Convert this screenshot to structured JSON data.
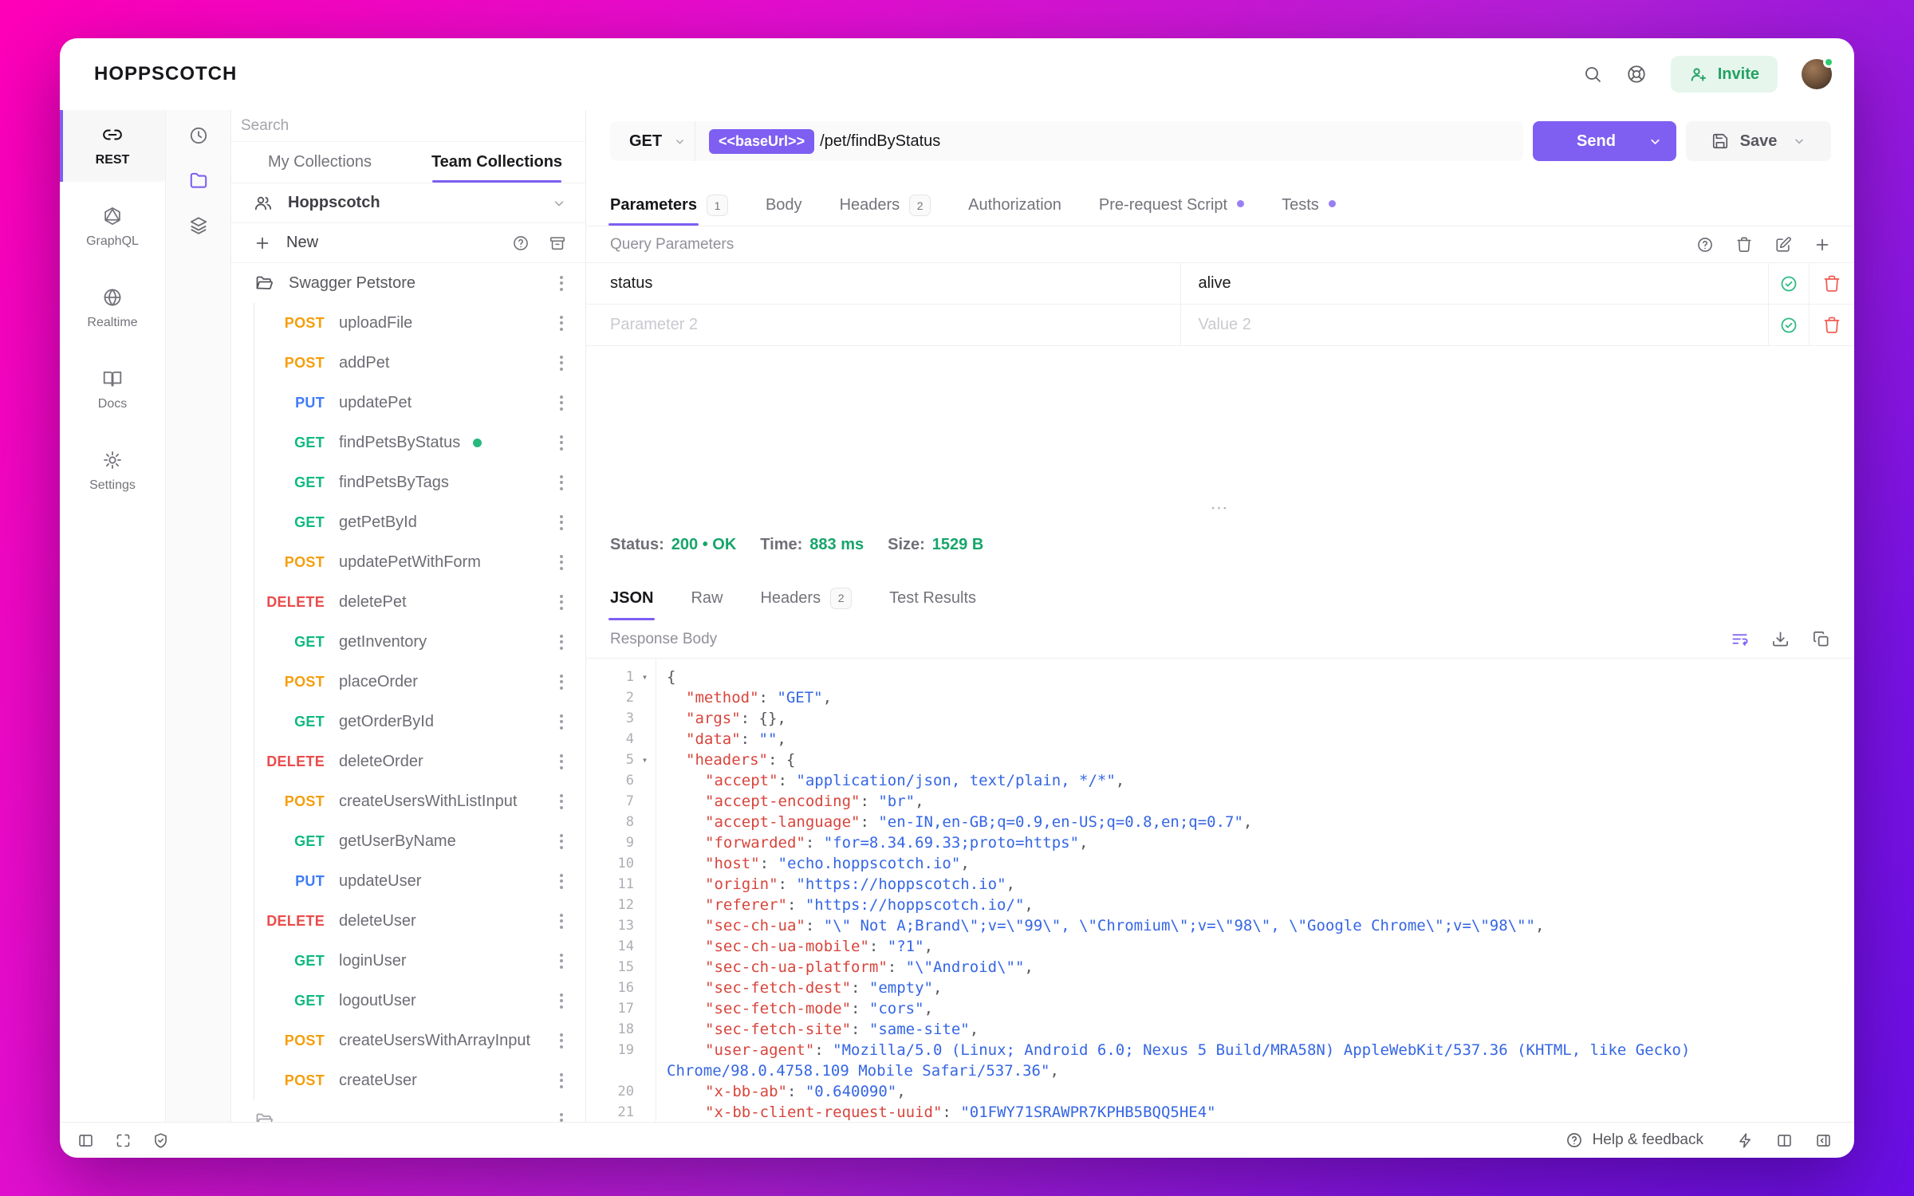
{
  "colors": {
    "accent": "#7e5ff2",
    "get": "#10b981",
    "post": "#f59e0b",
    "put": "#3e7bfa",
    "delete": "#ea4c4c",
    "green": "#17a56b",
    "red": "#ef5e55"
  },
  "header": {
    "logo": "HOPPSCOTCH",
    "invite_label": "Invite"
  },
  "nav": {
    "items": [
      {
        "label": "REST"
      },
      {
        "label": "GraphQL"
      },
      {
        "label": "Realtime"
      },
      {
        "label": "Docs"
      },
      {
        "label": "Settings"
      }
    ]
  },
  "collections": {
    "search_placeholder": "Search",
    "tab_my": "My Collections",
    "tab_team": "Team Collections",
    "team_name": "Hoppscotch",
    "new_label": "New",
    "folder_name": "Swagger Petstore",
    "requests": [
      {
        "method": "POST",
        "name": "uploadFile"
      },
      {
        "method": "POST",
        "name": "addPet"
      },
      {
        "method": "PUT",
        "name": "updatePet"
      },
      {
        "method": "GET",
        "name": "findPetsByStatus",
        "active": true
      },
      {
        "method": "GET",
        "name": "findPetsByTags"
      },
      {
        "method": "GET",
        "name": "getPetById"
      },
      {
        "method": "POST",
        "name": "updatePetWithForm"
      },
      {
        "method": "DELETE",
        "name": "deletePet"
      },
      {
        "method": "GET",
        "name": "getInventory"
      },
      {
        "method": "POST",
        "name": "placeOrder"
      },
      {
        "method": "GET",
        "name": "getOrderById"
      },
      {
        "method": "DELETE",
        "name": "deleteOrder"
      },
      {
        "method": "POST",
        "name": "createUsersWithListInput"
      },
      {
        "method": "GET",
        "name": "getUserByName"
      },
      {
        "method": "PUT",
        "name": "updateUser"
      },
      {
        "method": "DELETE",
        "name": "deleteUser"
      },
      {
        "method": "GET",
        "name": "loginUser"
      },
      {
        "method": "GET",
        "name": "logoutUser"
      },
      {
        "method": "POST",
        "name": "createUsersWithArrayInput"
      },
      {
        "method": "POST",
        "name": "createUser"
      }
    ]
  },
  "request": {
    "method": "GET",
    "base_url": "<<baseUrl>>",
    "path": "/pet/findByStatus",
    "send_label": "Send",
    "save_label": "Save",
    "tabs": [
      {
        "label": "Parameters",
        "badge": "1",
        "active": true
      },
      {
        "label": "Body"
      },
      {
        "label": "Headers",
        "badge": "2"
      },
      {
        "label": "Authorization"
      },
      {
        "label": "Pre-request Script",
        "dot": true
      },
      {
        "label": "Tests",
        "dot": true
      }
    ],
    "section_title": "Query Parameters",
    "params": [
      {
        "key": "status",
        "value": "alive",
        "placeholder": false
      },
      {
        "key": "Parameter 2",
        "value": "Value 2",
        "placeholder": true
      }
    ]
  },
  "response": {
    "meta": [
      {
        "label": "Status:",
        "value": "200 • OK"
      },
      {
        "label": "Time:",
        "value": "883 ms"
      },
      {
        "label": "Size:",
        "value": "1529 B"
      }
    ],
    "tabs": [
      {
        "label": "JSON",
        "active": true
      },
      {
        "label": "Raw"
      },
      {
        "label": "Headers",
        "badge": "2"
      },
      {
        "label": "Test Results"
      }
    ],
    "body_label": "Response Body",
    "lines": [
      {
        "n": "1",
        "fold": true,
        "ind": 0,
        "seg": [
          [
            "p",
            "{"
          ]
        ]
      },
      {
        "n": "2",
        "ind": 1,
        "seg": [
          [
            "k",
            "\"method\""
          ],
          [
            "p",
            ": "
          ],
          [
            "s",
            "\"GET\""
          ],
          [
            "p",
            ","
          ]
        ]
      },
      {
        "n": "3",
        "ind": 1,
        "seg": [
          [
            "k",
            "\"args\""
          ],
          [
            "p",
            ": {},"
          ]
        ]
      },
      {
        "n": "4",
        "ind": 1,
        "seg": [
          [
            "k",
            "\"data\""
          ],
          [
            "p",
            ": "
          ],
          [
            "s",
            "\"\""
          ],
          [
            "p",
            ","
          ]
        ]
      },
      {
        "n": "5",
        "fold": true,
        "ind": 1,
        "seg": [
          [
            "k",
            "\"headers\""
          ],
          [
            "p",
            ": {"
          ]
        ]
      },
      {
        "n": "6",
        "ind": 2,
        "seg": [
          [
            "k",
            "\"accept\""
          ],
          [
            "p",
            ": "
          ],
          [
            "s",
            "\"application/json, text/plain, */*\""
          ],
          [
            "p",
            ","
          ]
        ]
      },
      {
        "n": "7",
        "ind": 2,
        "seg": [
          [
            "k",
            "\"accept-encoding\""
          ],
          [
            "p",
            ": "
          ],
          [
            "s",
            "\"br\""
          ],
          [
            "p",
            ","
          ]
        ]
      },
      {
        "n": "8",
        "ind": 2,
        "seg": [
          [
            "k",
            "\"accept-language\""
          ],
          [
            "p",
            ": "
          ],
          [
            "s",
            "\"en-IN,en-GB;q=0.9,en-US;q=0.8,en;q=0.7\""
          ],
          [
            "p",
            ","
          ]
        ]
      },
      {
        "n": "9",
        "ind": 2,
        "seg": [
          [
            "k",
            "\"forwarded\""
          ],
          [
            "p",
            ": "
          ],
          [
            "s",
            "\"for=8.34.69.33;proto=https\""
          ],
          [
            "p",
            ","
          ]
        ]
      },
      {
        "n": "10",
        "ind": 2,
        "seg": [
          [
            "k",
            "\"host\""
          ],
          [
            "p",
            ": "
          ],
          [
            "s",
            "\"echo.hoppscotch.io\""
          ],
          [
            "p",
            ","
          ]
        ]
      },
      {
        "n": "11",
        "ind": 2,
        "seg": [
          [
            "k",
            "\"origin\""
          ],
          [
            "p",
            ": "
          ],
          [
            "s",
            "\"https://hoppscotch.io\""
          ],
          [
            "p",
            ","
          ]
        ]
      },
      {
        "n": "12",
        "ind": 2,
        "seg": [
          [
            "k",
            "\"referer\""
          ],
          [
            "p",
            ": "
          ],
          [
            "s",
            "\"https://hoppscotch.io/\""
          ],
          [
            "p",
            ","
          ]
        ]
      },
      {
        "n": "13",
        "ind": 2,
        "seg": [
          [
            "k",
            "\"sec-ch-ua\""
          ],
          [
            "p",
            ": "
          ],
          [
            "s",
            "\"\\\" Not A;Brand\\\";v=\\\"99\\\", \\\"Chromium\\\";v=\\\"98\\\", \\\"Google Chrome\\\";v=\\\"98\\\"\""
          ],
          [
            "p",
            ","
          ]
        ]
      },
      {
        "n": "14",
        "ind": 2,
        "seg": [
          [
            "k",
            "\"sec-ch-ua-mobile\""
          ],
          [
            "p",
            ": "
          ],
          [
            "s",
            "\"?1\""
          ],
          [
            "p",
            ","
          ]
        ]
      },
      {
        "n": "15",
        "ind": 2,
        "seg": [
          [
            "k",
            "\"sec-ch-ua-platform\""
          ],
          [
            "p",
            ": "
          ],
          [
            "s",
            "\"\\\"Android\\\"\""
          ],
          [
            "p",
            ","
          ]
        ]
      },
      {
        "n": "16",
        "ind": 2,
        "seg": [
          [
            "k",
            "\"sec-fetch-dest\""
          ],
          [
            "p",
            ": "
          ],
          [
            "s",
            "\"empty\""
          ],
          [
            "p",
            ","
          ]
        ]
      },
      {
        "n": "17",
        "ind": 2,
        "seg": [
          [
            "k",
            "\"sec-fetch-mode\""
          ],
          [
            "p",
            ": "
          ],
          [
            "s",
            "\"cors\""
          ],
          [
            "p",
            ","
          ]
        ]
      },
      {
        "n": "18",
        "ind": 2,
        "seg": [
          [
            "k",
            "\"sec-fetch-site\""
          ],
          [
            "p",
            ": "
          ],
          [
            "s",
            "\"same-site\""
          ],
          [
            "p",
            ","
          ]
        ]
      },
      {
        "n": "19",
        "ind": 2,
        "seg": [
          [
            "k",
            "\"user-agent\""
          ],
          [
            "p",
            ": "
          ],
          [
            "s",
            "\"Mozilla/5.0 (Linux; Android 6.0; Nexus 5 Build/MRA58N) AppleWebKit/537.36 (KHTML, like Gecko)"
          ]
        ]
      },
      {
        "n": "",
        "ind": 0,
        "seg": [
          [
            "s",
            "Chrome/98.0.4758.109 Mobile Safari/537.36\""
          ],
          [
            "p",
            ","
          ]
        ]
      },
      {
        "n": "20",
        "ind": 2,
        "seg": [
          [
            "k",
            "\"x-bb-ab\""
          ],
          [
            "p",
            ": "
          ],
          [
            "s",
            "\"0.640090\""
          ],
          [
            "p",
            ","
          ]
        ]
      },
      {
        "n": "21",
        "ind": 2,
        "seg": [
          [
            "k",
            "\"x-bb-client-request-uuid\""
          ],
          [
            "p",
            ": "
          ],
          [
            "s",
            "\"01FWY71SRAWPR7KPHB5BQQ5HE4\""
          ]
        ]
      }
    ]
  },
  "footer": {
    "help_label": "Help & feedback"
  }
}
